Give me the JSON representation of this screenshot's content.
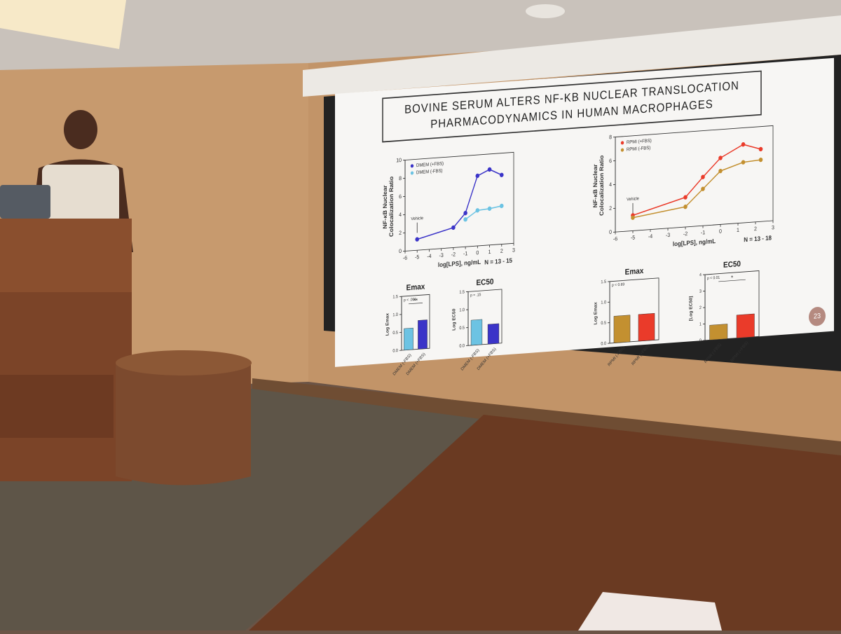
{
  "slide": {
    "title_line1": "BOVINE SERUM ALTERS NF-KB NUCLEAR TRANSLOCATION",
    "title_line2": "PHARMACODYNAMICS IN HUMAN MACROPHAGES",
    "page_number": "23",
    "charts": [
      {
        "type": "line",
        "ylabel_line1": "NF-κB Nuclear",
        "ylabel_line2": "Colocalization Ratio",
        "xlabel": "log[LPS], ng/mL",
        "note": "N = 13 - 15",
        "annotation": "Vehicle",
        "x": [
          -5,
          -2,
          -1,
          0,
          1,
          2
        ],
        "series": [
          {
            "name": "DMEM (+FBS)",
            "color": "#3b34c8",
            "values": [
              1.2,
              2.2,
              3.7,
              7.7,
              8.3,
              7.6
            ]
          },
          {
            "name": "DMEM (-FBS)",
            "color": "#6cc3e3",
            "values": [
              null,
              null,
              3.0,
              3.9,
              4.0,
              4.2
            ]
          }
        ],
        "xlim": [
          -6,
          3
        ],
        "xticks": [
          -6,
          -5,
          -4,
          -3,
          -2,
          -1,
          0,
          1,
          2,
          3
        ],
        "ylim": [
          0,
          10
        ],
        "yticks": [
          0,
          2,
          4,
          6,
          8,
          10
        ]
      },
      {
        "type": "line",
        "ylabel_line1": "NF-κB Nuclear",
        "ylabel_line2": "Colocalization Ratio",
        "xlabel": "log[LPS], ng/mL",
        "note": "N = 13 - 18",
        "annotation": "Vehicle",
        "x": [
          -5,
          -2,
          -1,
          0,
          1.3,
          2.3
        ],
        "series": [
          {
            "name": "RPMI (+FBS)",
            "color": "#ea3b2a",
            "values": [
              1.3,
              2.5,
              4.1,
              5.6,
              6.6,
              6.1
            ]
          },
          {
            "name": "RPMI (-FBS)",
            "color": "#c39030",
            "values": [
              1.1,
              1.7,
              3.1,
              4.5,
              5.1,
              5.2
            ]
          }
        ],
        "xlim": [
          -6,
          3
        ],
        "xticks": [
          -6,
          -5,
          -4,
          -3,
          -2,
          -1,
          0,
          1,
          2,
          3
        ],
        "ylim": [
          0,
          8
        ],
        "yticks": [
          0,
          2,
          4,
          6,
          8
        ]
      },
      {
        "type": "bar",
        "title": "Emax",
        "ylabel": "Log Emax",
        "annotation": "p < .001",
        "significance": "**",
        "categories": [
          "DMEM (-FBS)",
          "DMEM (+FBS)"
        ],
        "values": [
          0.6,
          0.8
        ],
        "colors": [
          "#6cc3e3",
          "#3b34c8"
        ],
        "ylim": [
          0,
          1.5
        ],
        "yticks": [
          {
            "value": 0,
            "label": "0.0"
          },
          0.5,
          {
            "value": 1,
            "label": "1.0"
          },
          1.5
        ]
      },
      {
        "type": "bar",
        "title": "EC50",
        "ylabel": "Log EC50",
        "annotation": "p = .15",
        "categories": [
          "DMEM (-FBS)",
          "DMEM (+FBS)"
        ],
        "values": [
          0.7,
          0.55
        ],
        "colors": [
          "#6cc3e3",
          "#3b34c8"
        ],
        "ylim": [
          0,
          1.5
        ],
        "yticks": [
          {
            "value": 0,
            "label": "0.0"
          },
          0.5,
          {
            "value": 1,
            "label": "1.0"
          },
          1.5
        ]
      },
      {
        "type": "bar",
        "title": "Emax",
        "ylabel": "Log Emax",
        "annotation": "p < 0.69",
        "categories": [
          "RPMI (-FBS)",
          "RPMI (+FBS)"
        ],
        "values": [
          0.65,
          0.65
        ],
        "colors": [
          "#c39030",
          "#ea3b2a"
        ],
        "ylim": [
          0,
          1.5
        ],
        "yticks": [
          {
            "value": 0,
            "label": "0.0"
          },
          0.5,
          {
            "value": 1,
            "label": "1.0"
          },
          1.5
        ]
      },
      {
        "type": "bar",
        "title": "EC50",
        "ylabel": "[Log EC50]",
        "annotation": "p < 0.01",
        "significance": "*",
        "categories": [
          "RPMI (-FBS)",
          "RPMI (+FBS)"
        ],
        "values": [
          0.9,
          1.4
        ],
        "colors": [
          "#c39030",
          "#ea3b2a"
        ],
        "ylim": [
          0,
          4
        ],
        "yticks": [
          0,
          1,
          2,
          3,
          4
        ]
      }
    ]
  }
}
